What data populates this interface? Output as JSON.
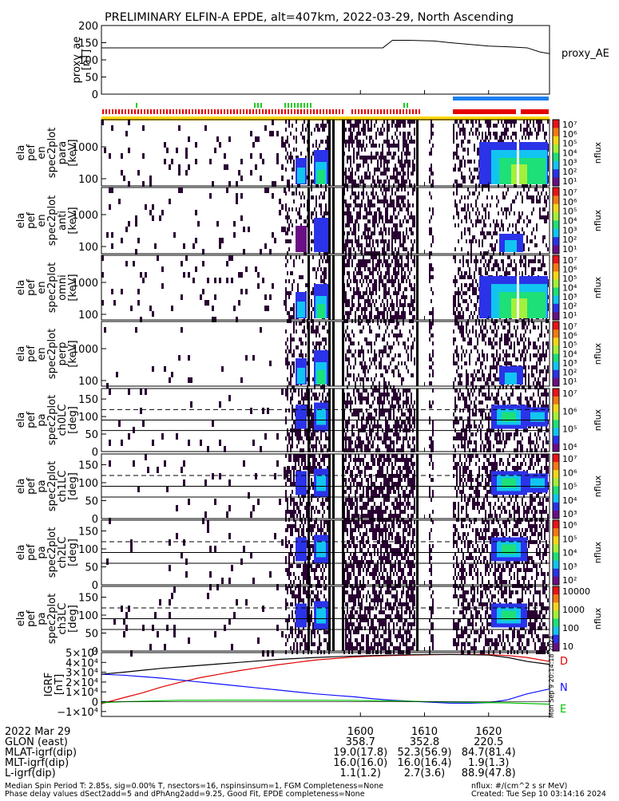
{
  "title": "PRELIMINARY ELFIN-A EPDE, alt=407km, 2022-03-29, North Ascending",
  "colors": {
    "spec": [
      "#ffffff",
      "#6a0f86",
      "#2b33e8",
      "#11c5f0",
      "#1ee078",
      "#a3f03a",
      "#f2d61a",
      "#f07a14",
      "#e8141a"
    ],
    "dark": "#2a0033",
    "black_bar": "#000000",
    "orange": "#ffa500",
    "yellow": "#ffd700",
    "blue_bar": "#1e7ff0",
    "red_bar": "#e60000",
    "green_bar": "#1fcc1f",
    "D": "#e00000",
    "N": "#1010ff",
    "E": "#00c000"
  },
  "chart_data": [
    {
      "type": "line",
      "panel": "proxy_ae",
      "ylabel_lines": [
        "proxy_ae",
        "[nT]"
      ],
      "ylim": [
        0,
        200
      ],
      "yticks": [
        "200",
        "150",
        "100",
        "50",
        "0"
      ],
      "legend": "proxy_AE",
      "x": [
        1559.6,
        1600.0,
        1603.5,
        1605.0,
        1607.5,
        1611.5,
        1614.0,
        1617.0,
        1620.0,
        1623.0,
        1626.0,
        1628.0,
        1629.5
      ],
      "y": [
        135,
        135,
        135,
        157,
        157,
        155,
        150,
        145,
        140,
        138,
        135,
        123,
        118
      ]
    },
    {
      "type": "heatmap",
      "panel": "en_par",
      "ylabel_lines": [
        "ela",
        "pef",
        "en",
        "spec2plot",
        "para",
        "[keV]"
      ],
      "yticks": [
        "1000",
        "100"
      ],
      "colorbar_label": "nflux",
      "colorbar_ticks": [
        "10⁷",
        "10⁶",
        "10⁵",
        "10⁴",
        "10³",
        "10²",
        "10¹"
      ]
    },
    {
      "type": "heatmap",
      "panel": "en_anti",
      "ylabel_lines": [
        "ela",
        "pef",
        "en",
        "spec2plot",
        "anti",
        "[keV]"
      ],
      "yticks": [
        "1000",
        "100"
      ],
      "colorbar_label": "nflux",
      "colorbar_ticks": [
        "10⁷",
        "10⁶",
        "10⁵",
        "10⁴",
        "10³",
        "10²",
        "10¹"
      ]
    },
    {
      "type": "heatmap",
      "panel": "en_omni",
      "ylabel_lines": [
        "ela",
        "pef",
        "en",
        "spec2plot",
        "omni",
        "[keV]"
      ],
      "yticks": [
        "1000",
        "100"
      ],
      "colorbar_label": "nflux",
      "colorbar_ticks": [
        "10⁷",
        "10⁶",
        "10⁵",
        "10⁴",
        "10³",
        "10²",
        "10¹"
      ]
    },
    {
      "type": "heatmap",
      "panel": "en_perp",
      "ylabel_lines": [
        "ela",
        "pef",
        "en",
        "spec2plot",
        "perp",
        "[keV]"
      ],
      "yticks": [
        "1000",
        "100"
      ],
      "colorbar_label": "nflux",
      "colorbar_ticks": [
        "10⁷",
        "10⁶",
        "10⁵",
        "10⁴",
        "10³",
        "10²",
        "10¹"
      ]
    },
    {
      "type": "heatmap",
      "panel": "pa_ch0",
      "ylabel_lines": [
        "ela",
        "pef",
        "pa",
        "spec2plot",
        "ch0LC",
        "[deg]"
      ],
      "yticks": [
        "150",
        "100",
        "50",
        "0"
      ],
      "colorbar_label": "nflux",
      "colorbar_ticks": [
        "10⁷",
        "10⁶",
        "10⁵",
        "10⁴"
      ]
    },
    {
      "type": "heatmap",
      "panel": "pa_ch1",
      "ylabel_lines": [
        "ela",
        "pef",
        "pa",
        "spec2plot",
        "ch1LC",
        "[deg]"
      ],
      "yticks": [
        "150",
        "100",
        "50",
        "0"
      ],
      "colorbar_label": "nflux",
      "colorbar_ticks": [
        "10⁷",
        "10⁶",
        "10⁵",
        "10⁴",
        "10³"
      ]
    },
    {
      "type": "heatmap",
      "panel": "pa_ch2",
      "ylabel_lines": [
        "ela",
        "pef",
        "pa",
        "spec2plot",
        "ch2LC",
        "[deg]"
      ],
      "yticks": [
        "150",
        "100",
        "50",
        "0"
      ],
      "colorbar_label": "nflux",
      "colorbar_ticks": [
        "10⁶",
        "10⁵",
        "10⁴",
        "10³",
        "10²"
      ]
    },
    {
      "type": "heatmap",
      "panel": "pa_ch3",
      "ylabel_lines": [
        "ela",
        "pef",
        "pa",
        "spec2plot",
        "ch3LC",
        "[deg]"
      ],
      "yticks": [
        "150",
        "100",
        "50",
        "0"
      ],
      "colorbar_label": "nflux",
      "colorbar_ticks": [
        "10000",
        "1000",
        "100",
        "10"
      ]
    },
    {
      "type": "line",
      "panel": "igrf",
      "ylabel_lines": [
        "IGRF",
        "[nT]"
      ],
      "yticks": [
        "5×10⁴",
        "4×10⁴",
        "3×10⁴",
        "2×10⁴",
        "1×10⁴",
        "0",
        "−1×10⁴"
      ],
      "ylim": [
        -15000,
        50000
      ],
      "x": [
        1559.6,
        1563,
        1566,
        1569,
        1572,
        1575,
        1578,
        1581,
        1584,
        1587,
        1590,
        1593,
        1596,
        1599,
        1602,
        1605,
        1608,
        1611,
        1614,
        1617,
        1620,
        1623,
        1626,
        1629.5
      ],
      "series": [
        {
          "name": "D",
          "y": [
            -2000,
            4000,
            9000,
            15000,
            20000,
            24500,
            28000,
            31500,
            34500,
            37500,
            40000,
            42500,
            44000,
            45500,
            46500,
            47000,
            47500,
            47800,
            48000,
            48000,
            48000,
            47000,
            45000,
            41000
          ]
        },
        {
          "name": "N",
          "y": [
            28000,
            27000,
            25500,
            24000,
            22000,
            20000,
            18000,
            16000,
            14000,
            12000,
            10000,
            8000,
            6500,
            5000,
            3000,
            1500,
            500,
            -500,
            -1500,
            -1500,
            -1000,
            2000,
            8000,
            13000
          ]
        },
        {
          "name": "E",
          "y": [
            -1000,
            0,
            500,
            1000,
            1500,
            1500,
            1600,
            1600,
            1600,
            1500,
            1500,
            1500,
            1400,
            1300,
            1000,
            800,
            500,
            0,
            -200,
            -600,
            -1000,
            -1200,
            -1800,
            -2500
          ]
        },
        {
          "name": "",
          "y": [
            28000,
            30000,
            32000,
            34000,
            35500,
            37000,
            38500,
            40000,
            41500,
            43000,
            44000,
            45000,
            45800,
            46500,
            47000,
            47500,
            47800,
            48000,
            48000,
            47800,
            47500,
            45000,
            41000,
            38000
          ]
        }
      ]
    }
  ],
  "top_legend": "proxy_AE",
  "side_labels": [
    "D",
    "N",
    "E"
  ],
  "vertical_stamp": "Mon Sep 9 20:14:18 2024",
  "xaxis": {
    "row_labels": [
      "2022 Mar 29",
      "GLON (east)",
      "MLAT-igrf(dip)",
      "MLT-igrf(dip)",
      "L-igrf(dip)"
    ],
    "columns": [
      {
        "t": 1600,
        "vals": [
          "1600",
          "358.7",
          "19.0(17.8)",
          "16.0(16.0)",
          "1.1(1.2)"
        ]
      },
      {
        "t": 1610,
        "vals": [
          "1610",
          "352.8",
          "52.3(56.9)",
          "16.0(16.4)",
          "2.7(3.6)"
        ]
      },
      {
        "t": 1620,
        "vals": [
          "1620",
          "220.5",
          "84.7(81.4)",
          "1.9(1.3)",
          "88.9(47.8)"
        ]
      }
    ]
  },
  "footer": {
    "line1": "Median Spin Period T: 2.85s, sig=0.00% T, nsectors=16, nspinsinsum=1, FGM Completeness=None",
    "line2": "Phase delay values dSect2add=5 and dPhAng2add=9.25, Good Fit, EPDE completeness=None",
    "right1": "nflux: #/(cm^2 s sr MeV)",
    "right2": "Created: Tue Sep 10 03:14:16 2024"
  }
}
